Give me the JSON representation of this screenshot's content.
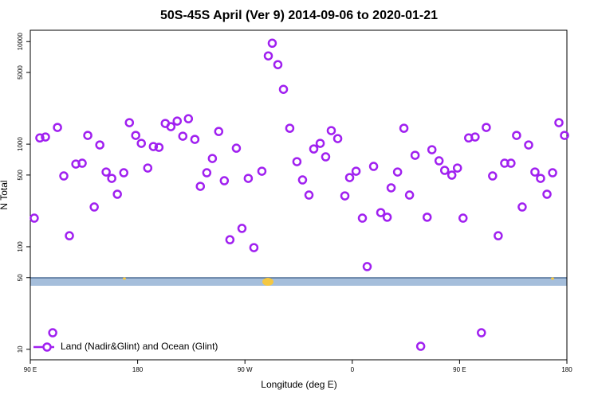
{
  "chart_data": {
    "type": "scatter",
    "title": "50S-45S April (Ver 9)   2014-09-06 to 2020-01-21",
    "x_label": "Longitude (deg E)",
    "y_label": "N Total",
    "log_y": true,
    "legend": "bottomleft",
    "xlim": [
      90,
      540
    ],
    "xticks": [
      {
        "value": 90,
        "label": "90 E"
      },
      180,
      {
        "value": 270,
        "label": "90 W"
      },
      {
        "value": 360,
        "label": "0"
      },
      {
        "value": 450,
        "label": "90 E"
      },
      {
        "value": 540,
        "label": "180"
      }
    ],
    "ylim": [
      7.9,
      12900
    ],
    "yticks": [
      10,
      50,
      100,
      500,
      1000,
      5000,
      10000
    ],
    "series": [
      {
        "name": "Land (Nadir&Glint) and Ocean (Glint)",
        "color": "#a020f0",
        "x": [
          93.3,
          98.0,
          102.7,
          108.8,
          112.8,
          118.1,
          122.8,
          128.2,
          133.5,
          138.2,
          143.6,
          148.3,
          153.6,
          158.3,
          163.0,
          168.4,
          173.1,
          178.4,
          183.1,
          188.5,
          193.2,
          197.9,
          203.2,
          207.9,
          213.2,
          217.9,
          222.6,
          228.0,
          232.6,
          238.0,
          242.7,
          248.0,
          252.7,
          257.4,
          262.8,
          267.5,
          272.8,
          277.5,
          284.2,
          289.6,
          292.9,
          297.6,
          302.3,
          307.6,
          313.6,
          318.3,
          323.7,
          327.7,
          333.1,
          337.7,
          342.4,
          347.8,
          353.8,
          357.8,
          363.2,
          368.5,
          372.5,
          377.9,
          383.9,
          389.3,
          392.6,
          398.0,
          403.3,
          408.0,
          412.7,
          417.4,
          422.8,
          426.8,
          432.8,
          437.5,
          443.5,
          448.2,
          452.9,
          457.6,
          463.0,
          468.3,
          472.4,
          477.7,
          482.4,
          487.8,
          493.1,
          497.8,
          502.5,
          507.9,
          513.2,
          517.9,
          523.3,
          528.0,
          533.3,
          538.0
        ],
        "values": [
          190,
          1150,
          1175,
          14.5,
          1455,
          490,
          128,
          640,
          652,
          1217,
          244,
          982,
          535,
          464,
          325,
          526,
          1620,
          1217,
          1018,
          585,
          948,
          931,
          1592,
          1482,
          1679,
          1196,
          1770,
          1113,
          388,
          526,
          725,
          1330,
          440,
          117,
          914,
          151,
          464,
          98,
          545,
          7250,
          9640,
          5960,
          3425,
          1429,
          675,
          448,
          319,
          898,
          1018,
          752,
          1355,
          1133,
          313,
          472,
          545,
          190,
          64,
          607,
          215,
          194,
          375,
          535,
          1429,
          319,
          779,
          10.7,
          194,
          883,
          688,
          555,
          499,
          585,
          190,
          1150,
          1175,
          14.5,
          1455,
          490,
          128,
          652,
          652,
          1217,
          244,
          982,
          535,
          464,
          325,
          526,
          1620,
          1217
        ]
      }
    ]
  }
}
